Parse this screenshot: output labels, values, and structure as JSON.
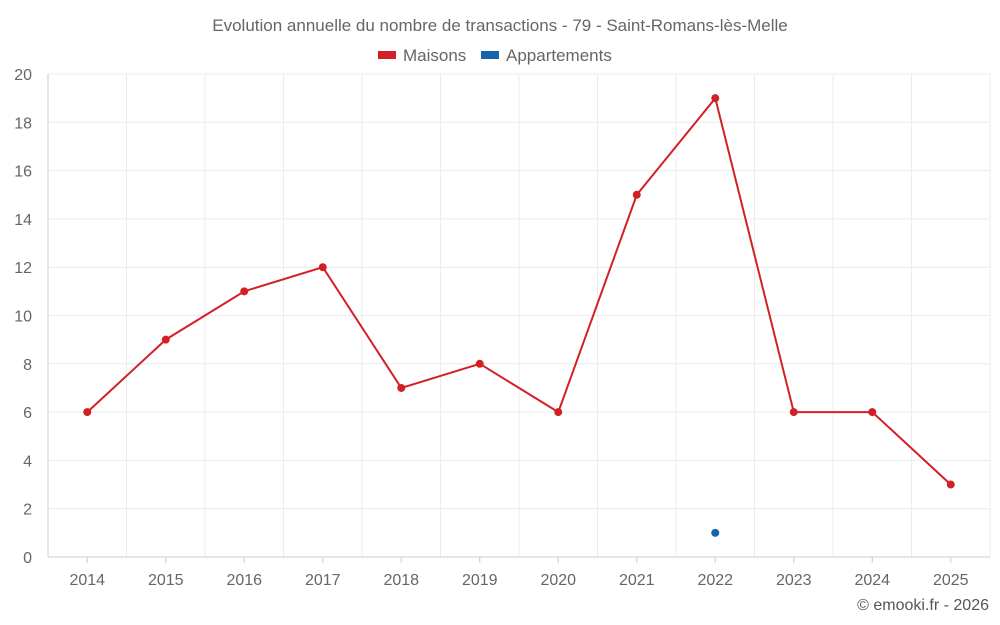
{
  "chart_data": {
    "type": "line",
    "title": "Evolution annuelle du nombre de transactions - 79 - Saint-Romans-lès-Melle",
    "categories": [
      "2014",
      "2015",
      "2016",
      "2017",
      "2018",
      "2019",
      "2020",
      "2021",
      "2022",
      "2023",
      "2024",
      "2025"
    ],
    "series": [
      {
        "name": "Maisons",
        "color": "#d32027",
        "values": [
          6,
          9,
          11,
          12,
          7,
          8,
          6,
          15,
          19,
          6,
          6,
          3
        ]
      },
      {
        "name": "Appartements",
        "color": "#1565a8",
        "values": [
          null,
          null,
          null,
          null,
          null,
          null,
          null,
          null,
          1,
          null,
          null,
          null
        ]
      }
    ],
    "ylim": [
      0,
      20
    ],
    "yticks": [
      0,
      2,
      4,
      6,
      8,
      10,
      12,
      14,
      16,
      18,
      20
    ],
    "xlabel": "",
    "ylabel": "",
    "grid": true,
    "legend_position": "top-center"
  },
  "credit": "© emooki.fr - 2026"
}
